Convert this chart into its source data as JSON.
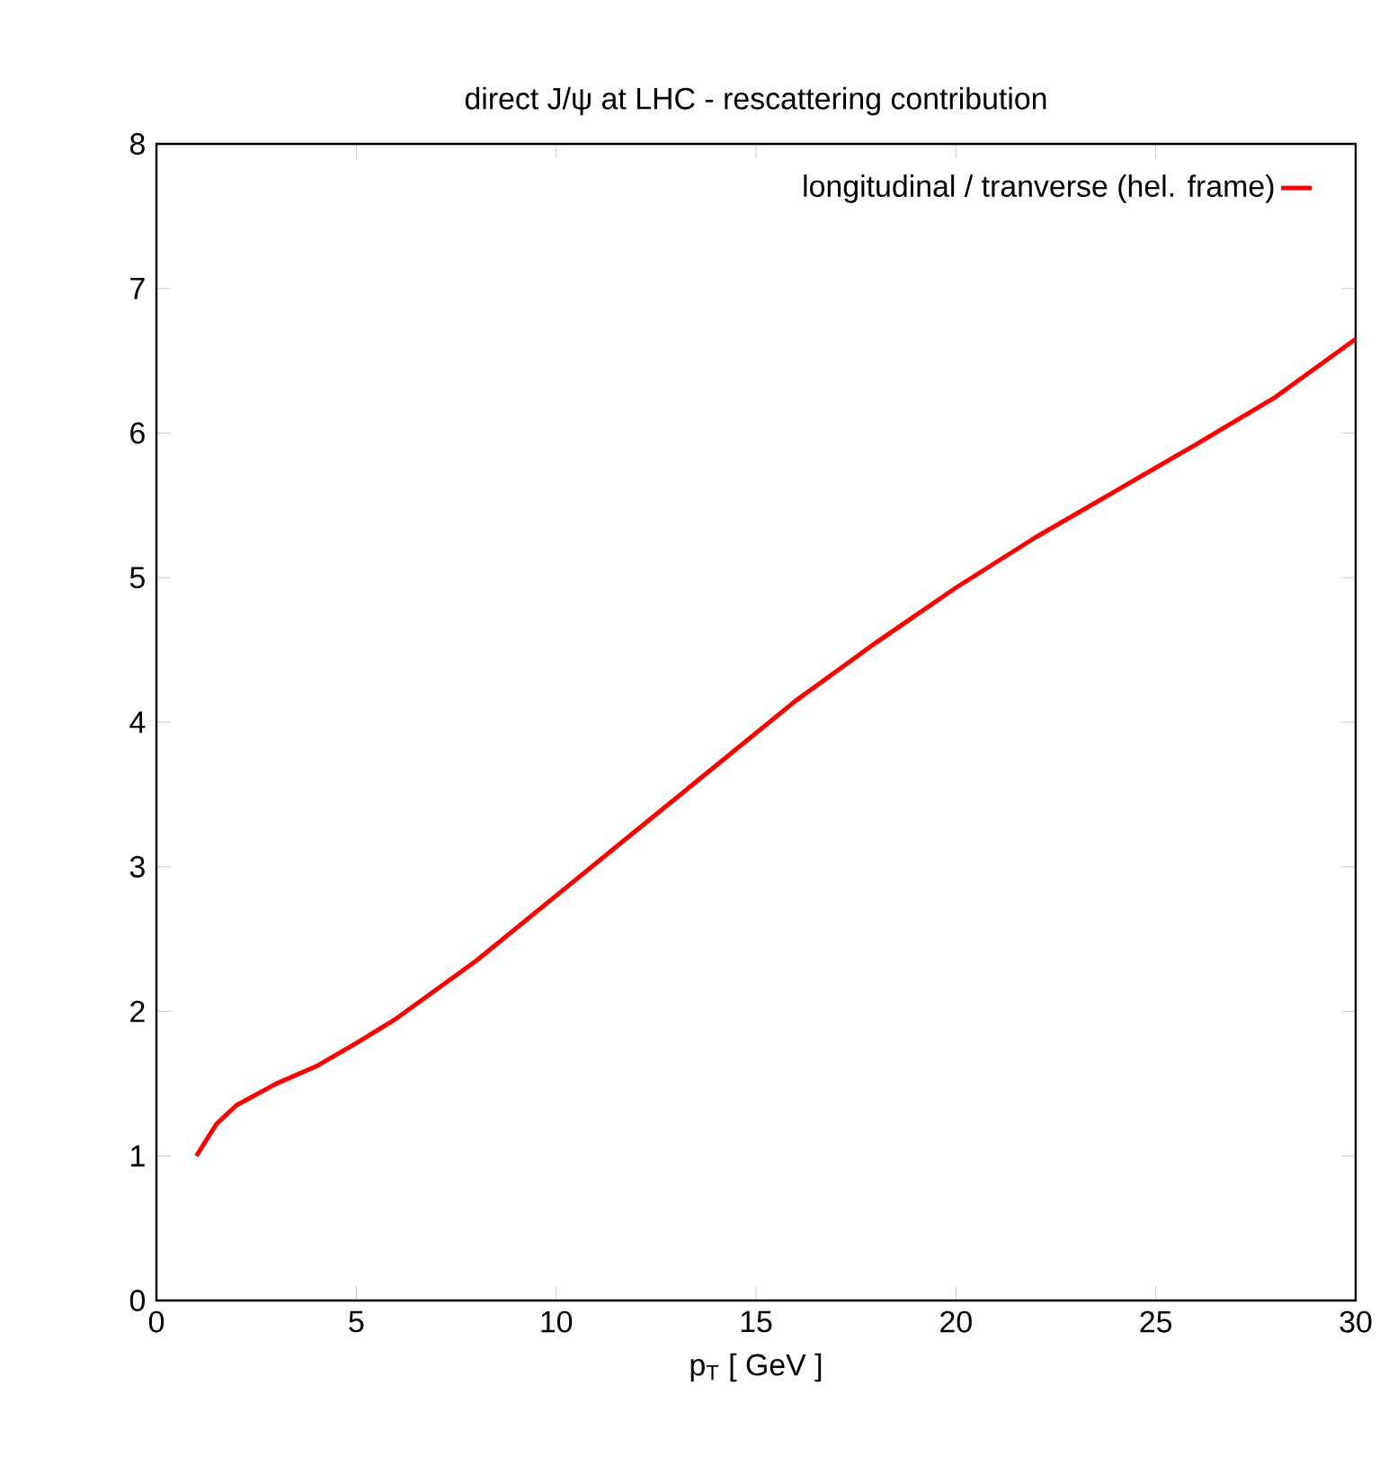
{
  "chart_data": {
    "type": "line",
    "title": "direct J/ψ at LHC - rescattering contribution",
    "xlabel": "p$_{T}$ [ GeV ]",
    "x": [
      1,
      1.5,
      2,
      3,
      4,
      5,
      6,
      8,
      10,
      12,
      14,
      16,
      18,
      20,
      22,
      24,
      26,
      28,
      30
    ],
    "series": [
      {
        "name": "longitudinal / tranverse (hel. frame)",
        "color": "#ff0000",
        "values": [
          1.0,
          1.22,
          1.35,
          1.5,
          1.62,
          1.78,
          1.95,
          2.35,
          2.8,
          3.25,
          3.7,
          4.15,
          4.55,
          4.93,
          5.28,
          5.6,
          5.92,
          6.25,
          6.65
        ]
      }
    ],
    "xlim": [
      0,
      30
    ],
    "ylim": [
      0,
      8
    ],
    "xticks": [
      0,
      5,
      10,
      15,
      20,
      25,
      30
    ],
    "yticks": [
      0,
      1,
      2,
      3,
      4,
      5,
      6,
      7,
      8
    ],
    "legend": "top right",
    "grid": false,
    "marker": "none",
    "line_style": "solid"
  }
}
